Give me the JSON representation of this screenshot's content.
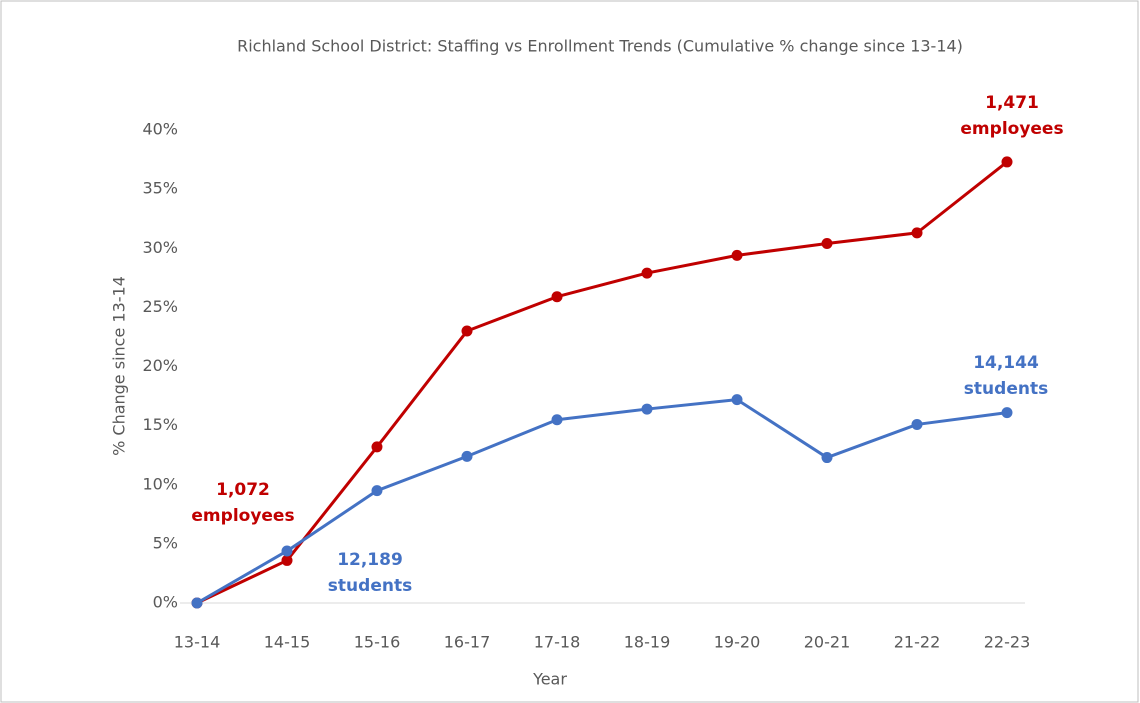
{
  "chart_data": {
    "type": "line",
    "title": "Richland School District: Staffing vs Enrollment Trends (Cumulative % change since 13-14)",
    "x_label": "Year",
    "y_label": "% Change since 13-14",
    "categories": [
      "13-14",
      "14-15",
      "15-16",
      "16-17",
      "17-18",
      "18-19",
      "19-20",
      "20-21",
      "21-22",
      "22-23"
    ],
    "series": [
      {
        "name": "Employees",
        "color": "#c00000",
        "values": [
          0,
          3.6,
          13.2,
          23.0,
          25.9,
          27.9,
          29.4,
          30.4,
          31.3,
          37.3
        ]
      },
      {
        "name": "Students",
        "color": "#4472c4",
        "values": [
          0,
          4.4,
          9.5,
          12.4,
          15.5,
          16.4,
          17.2,
          12.3,
          15.1,
          16.1
        ]
      }
    ],
    "ylim": [
      0,
      40
    ],
    "yticks": [
      {
        "value": 0,
        "label": "0%"
      },
      {
        "value": 5,
        "label": "5%"
      },
      {
        "value": 10,
        "label": "10%"
      },
      {
        "value": 15,
        "label": "15%"
      },
      {
        "value": 20,
        "label": "20%"
      },
      {
        "value": 25,
        "label": "25%"
      },
      {
        "value": 30,
        "label": "30%"
      },
      {
        "value": 35,
        "label": "35%"
      },
      {
        "value": 40,
        "label": "40%"
      }
    ],
    "grid": false,
    "annotations": [
      {
        "lines": [
          "1,072",
          "employees"
        ],
        "color": "#c00000"
      },
      {
        "lines": [
          "12,189",
          "students"
        ],
        "color": "#4472c4"
      },
      {
        "lines": [
          "14,144",
          "students"
        ],
        "color": "#4472c4"
      },
      {
        "lines": [
          "1,471",
          "employees"
        ],
        "color": "#c00000"
      }
    ]
  }
}
